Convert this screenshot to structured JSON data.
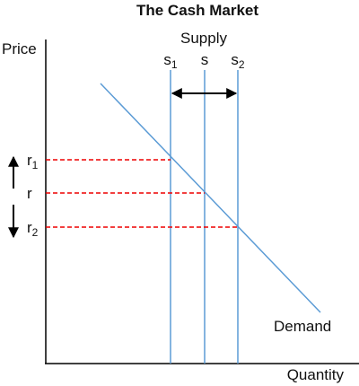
{
  "title": "The Cash Market",
  "axes": {
    "y": "Price",
    "x": "Quantity"
  },
  "supply": {
    "label": "Supply",
    "curves": [
      {
        "base": "s",
        "sub": "1"
      },
      {
        "base": "s"
      },
      {
        "base": "s",
        "sub": "2"
      }
    ]
  },
  "rates": [
    {
      "base": "r",
      "sub": "1"
    },
    {
      "base": "r"
    },
    {
      "base": "r",
      "sub": "2"
    }
  ],
  "demand": "Demand"
}
